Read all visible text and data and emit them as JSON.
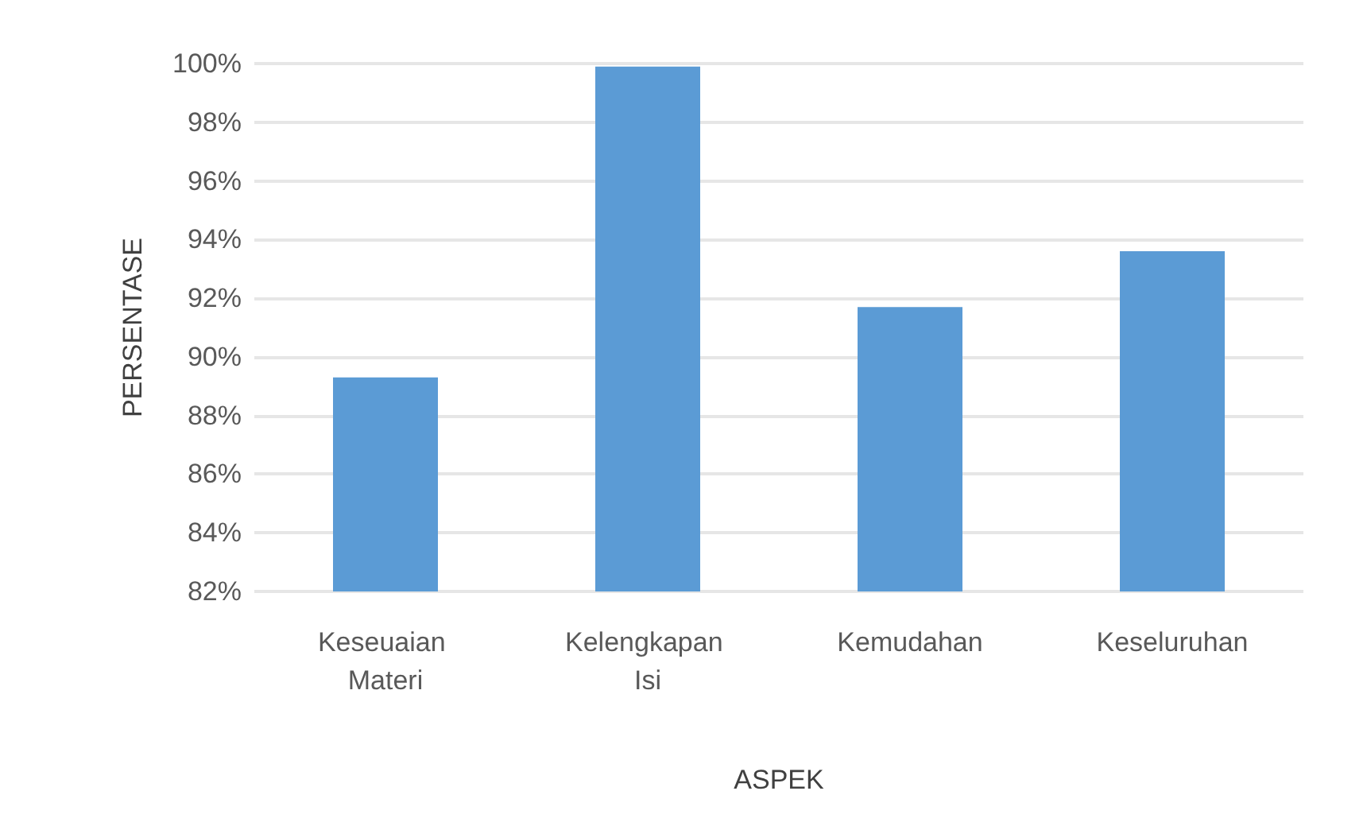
{
  "chart_data": {
    "type": "bar",
    "xlabel": "ASPEK",
    "ylabel": "PERSENTASE",
    "categories": [
      "Keseuaian Materi",
      "Kelengkapan Isi",
      "Kemudahan",
      "Keseluruhan"
    ],
    "values": [
      89.3,
      99.9,
      91.7,
      93.6
    ],
    "color": "#5b9bd5",
    "ylim": [
      82,
      100
    ],
    "yticks": [
      {
        "value": 82,
        "label": "82%"
      },
      {
        "value": 84,
        "label": "84%"
      },
      {
        "value": 86,
        "label": "86%"
      },
      {
        "value": 88,
        "label": "88%"
      },
      {
        "value": 90,
        "label": "90%"
      },
      {
        "value": 92,
        "label": "92%"
      },
      {
        "value": 94,
        "label": "94%"
      },
      {
        "value": 96,
        "label": "96%"
      },
      {
        "value": 98,
        "label": "98%"
      },
      {
        "value": 100,
        "label": "100%"
      }
    ],
    "grid": "y"
  }
}
